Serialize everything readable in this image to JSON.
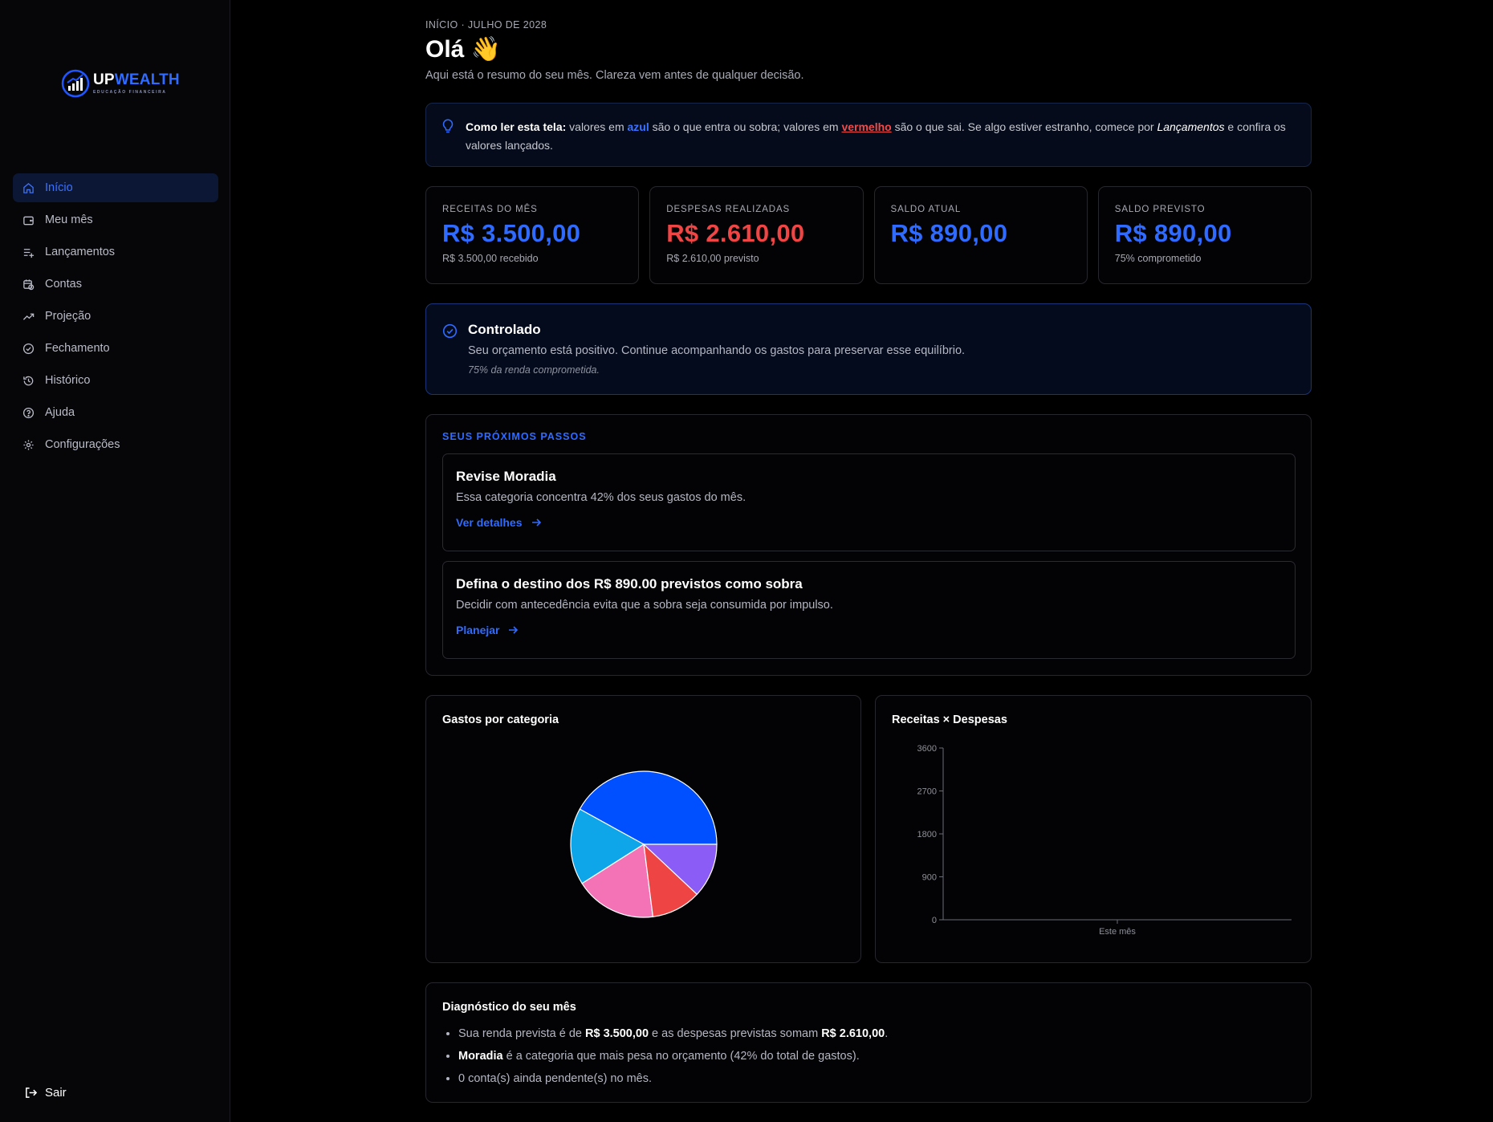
{
  "brand": {
    "name_part1": "UP",
    "name_part2": "WEALTH",
    "tagline": "EDUCAÇÃO FINANCEIRA"
  },
  "sidebar": {
    "items": [
      {
        "label": "Início",
        "icon": "home-icon",
        "active": true
      },
      {
        "label": "Meu mês",
        "icon": "wallet-icon"
      },
      {
        "label": "Lançamentos",
        "icon": "list-plus-icon"
      },
      {
        "label": "Contas",
        "icon": "calendar-clock-icon"
      },
      {
        "label": "Projeção",
        "icon": "trending-up-icon"
      },
      {
        "label": "Fechamento",
        "icon": "check-circle-icon"
      },
      {
        "label": "Histórico",
        "icon": "history-icon"
      },
      {
        "label": "Ajuda",
        "icon": "help-circle-icon"
      },
      {
        "label": "Configurações",
        "icon": "gear-icon"
      }
    ],
    "logout_label": "Sair"
  },
  "header": {
    "breadcrumb": "INÍCIO · JULHO DE 2028",
    "title": "Olá 👋",
    "subtitle": "Aqui está o resumo do seu mês. Clareza vem antes de qualquer decisão."
  },
  "tip": {
    "lead": "Como ler esta tela:",
    "t1": " valores em ",
    "blue_word": "azul",
    "t2": " são o que entra ou sobra; valores em ",
    "red_word": "vermelho",
    "t3": " são o que sai. Se algo estiver estranho, comece por ",
    "link_word": "Lançamentos",
    "t4": " e confira os valores lançados."
  },
  "kpis": [
    {
      "label": "RECEITAS DO MÊS",
      "value": "R$ 3.500,00",
      "note": "R$ 3.500,00 recebido",
      "tone": "blue"
    },
    {
      "label": "DESPESAS REALIZADAS",
      "value": "R$ 2.610,00",
      "note": "R$ 2.610,00 previsto",
      "tone": "red"
    },
    {
      "label": "SALDO ATUAL",
      "value": "R$ 890,00",
      "note": "",
      "tone": "blue"
    },
    {
      "label": "SALDO PREVISTO",
      "value": "R$ 890,00",
      "note": "75% comprometido",
      "tone": "blue"
    }
  ],
  "status": {
    "title": "Controlado",
    "text": "Seu orçamento está positivo. Continue acompanhando os gastos para preservar esse equilíbrio.",
    "note": "75% da renda comprometida."
  },
  "next_steps": {
    "label": "SEUS PRÓXIMOS PASSOS",
    "items": [
      {
        "title": "Revise Moradia",
        "text": "Essa categoria concentra 42% dos seus gastos do mês.",
        "link": "Ver detalhes"
      },
      {
        "title": "Defina o destino dos R$ 890.00 previstos como sobra",
        "text": "Decidir com antecedência evita que a sobra seja consumida por impulso.",
        "link": "Planejar"
      }
    ]
  },
  "chart_data": [
    {
      "type": "pie",
      "title": "Gastos por categoria",
      "slices": [
        {
          "value": 42,
          "color": "#0050ff"
        },
        {
          "value": 17,
          "color": "#0ea5e9"
        },
        {
          "value": 18,
          "color": "#f472b6"
        },
        {
          "value": 11,
          "color": "#ef4444"
        },
        {
          "value": 12,
          "color": "#8b5cf6"
        }
      ]
    },
    {
      "type": "bar",
      "title": "Receitas × Despesas",
      "categories": [
        "Este mês"
      ],
      "yticks": [
        "0",
        "900",
        "1800",
        "2700",
        "3600"
      ],
      "ylim": [
        0,
        3600
      ]
    }
  ],
  "diagnostic": {
    "title": "Diagnóstico do seu mês",
    "l1_a": "Sua renda prevista é de ",
    "l1_b": "R$ 3.500,00",
    "l1_c": " e as despesas previstas somam ",
    "l1_d": "R$ 2.610,00",
    "l1_e": ".",
    "l2_a": "Moradia",
    "l2_b": " é a categoria que mais pesa no orçamento (42% do total de gastos).",
    "l3": "0 conta(s) ainda pendente(s) no mês."
  }
}
